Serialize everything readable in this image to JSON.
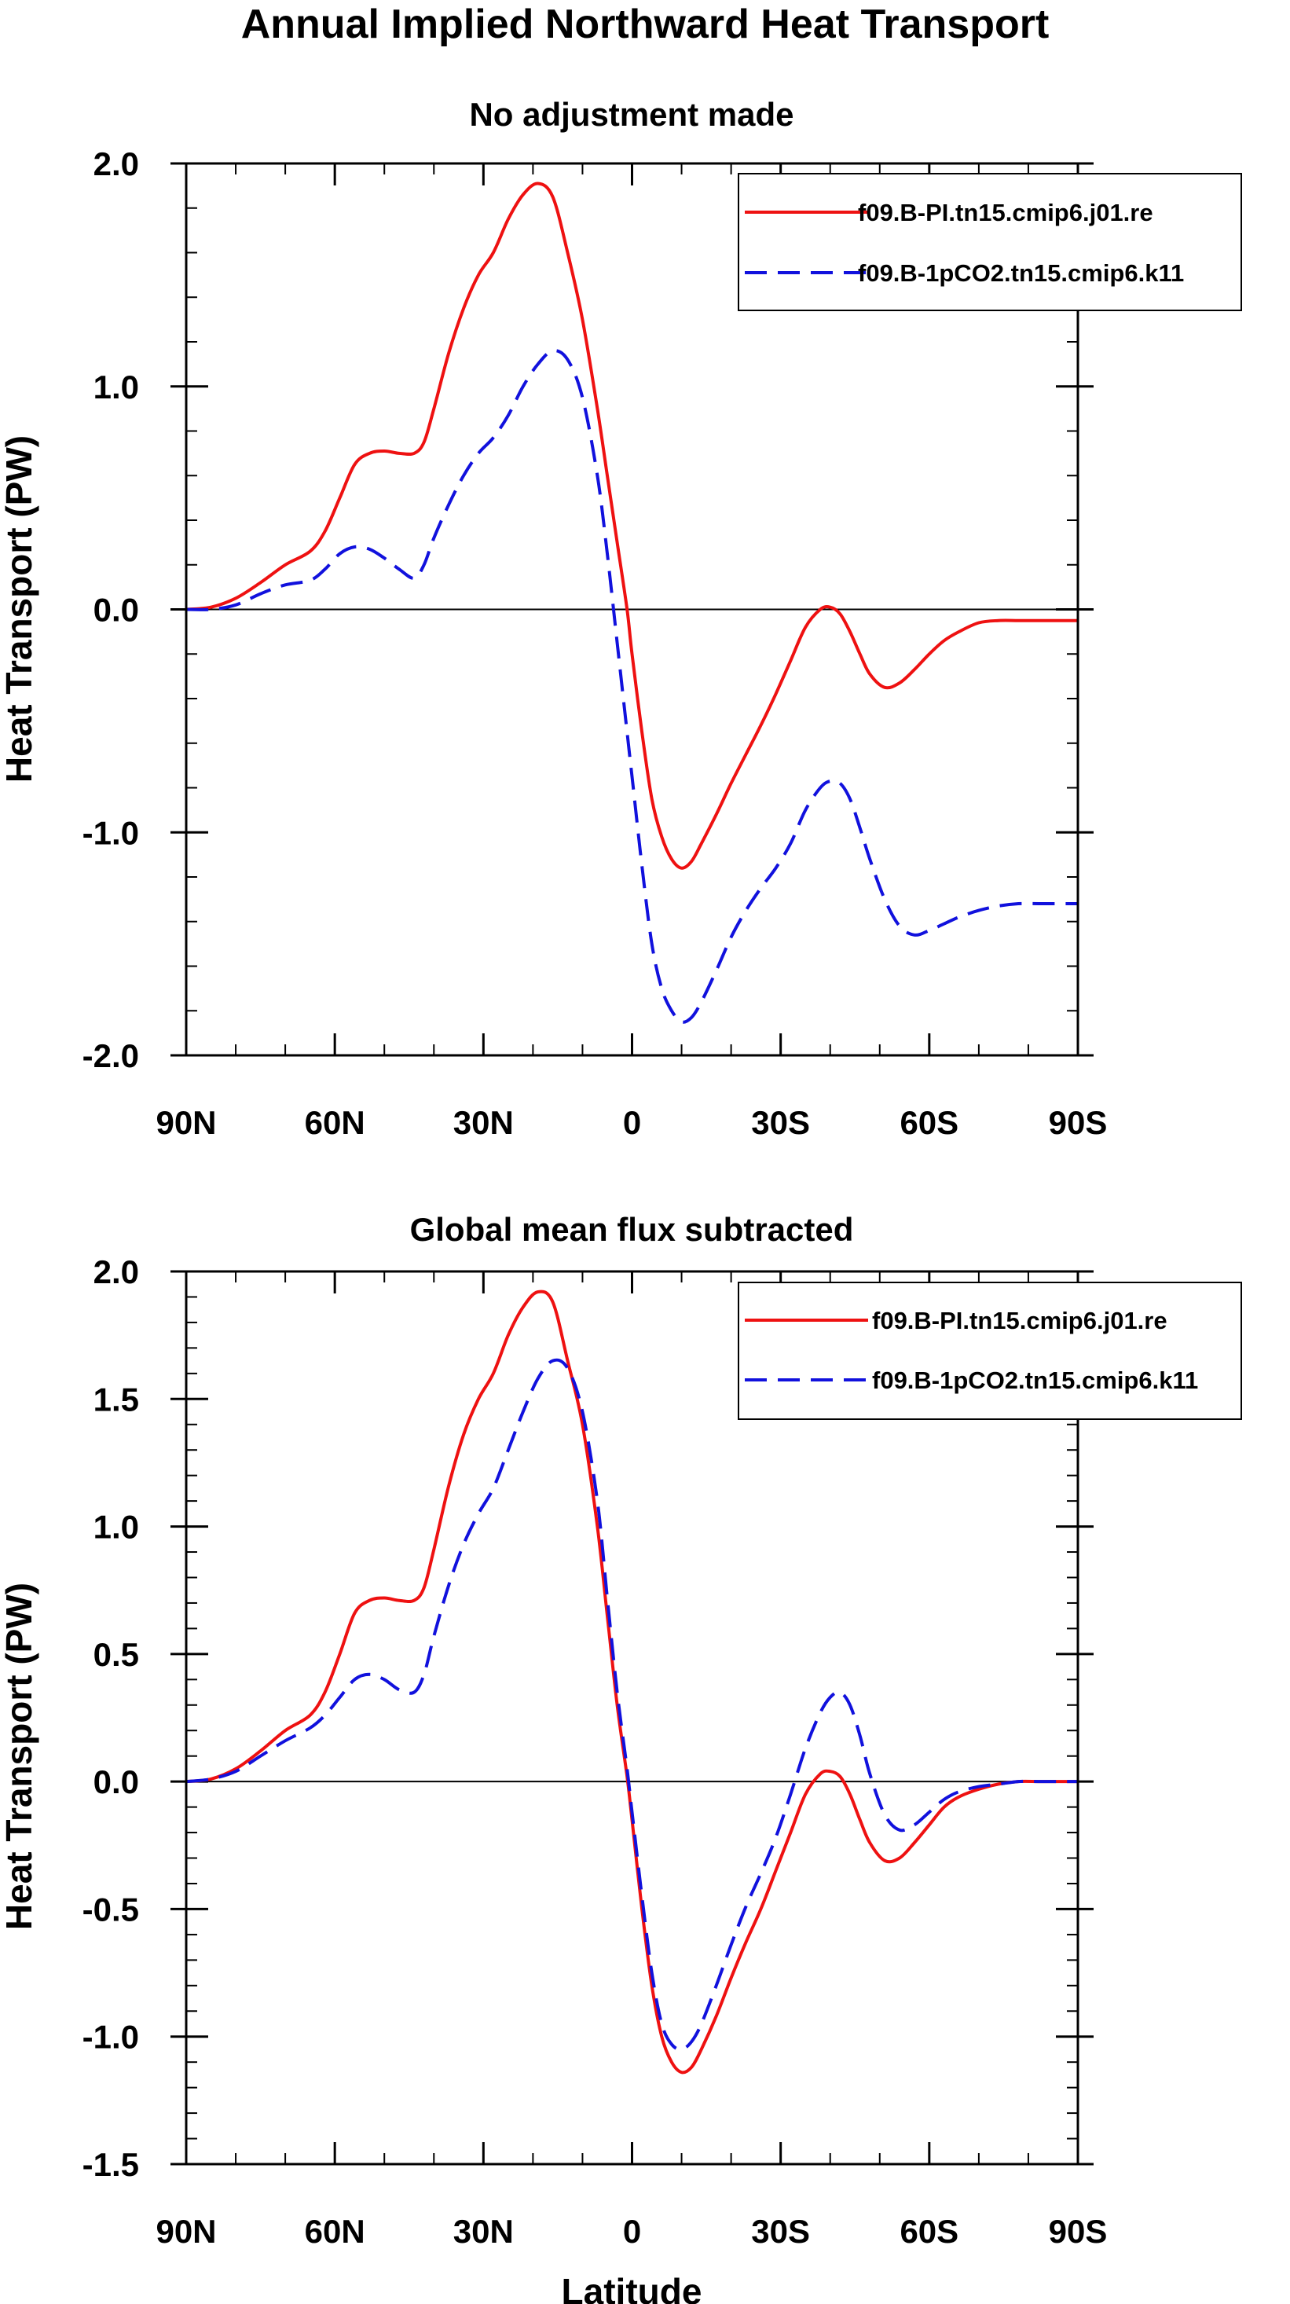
{
  "figure": {
    "title": "Annual Implied Northward Heat Transport",
    "colors": {
      "series1": "#ee1111",
      "series2": "#1111dd",
      "zero_line": "#000000"
    }
  },
  "chart_data": [
    {
      "type": "line",
      "title": "No adjustment made",
      "xlabel": "",
      "ylabel": "Heat Transport (PW)",
      "xlim": [
        90,
        -90
      ],
      "ylim": [
        -2.0,
        2.0
      ],
      "x_ticks": [
        90,
        60,
        30,
        0,
        -30,
        -60,
        -90
      ],
      "x_tick_labels": [
        "90N",
        "60N",
        "30N",
        "0",
        "30S",
        "60S",
        "90S"
      ],
      "y_ticks": [
        -2.0,
        -1.0,
        0.0,
        1.0,
        2.0
      ],
      "y_tick_labels": [
        "-2.0",
        "-1.0",
        "0.0",
        "1.0",
        "2.0"
      ],
      "grid": false,
      "zero_line": true,
      "legend_position": "top-right",
      "series": [
        {
          "name": "f09.B-PI.tn15.cmip6.j01.re",
          "style": "solid",
          "color": "#ee1111",
          "x": [
            90,
            85,
            80,
            75,
            70,
            65,
            62,
            59,
            56,
            53,
            50,
            47,
            44,
            42,
            40,
            37,
            34,
            31,
            28,
            25,
            22,
            19,
            16,
            13,
            10,
            7,
            5,
            3,
            1,
            0,
            -2,
            -4,
            -6,
            -8,
            -10,
            -12,
            -14,
            -17,
            -20,
            -23,
            -26,
            -29,
            -32,
            -35,
            -38,
            -40,
            -42,
            -44,
            -46,
            -48,
            -51,
            -54,
            -57,
            -60,
            -63,
            -66,
            -70,
            -74,
            -78,
            -82,
            -86,
            -90
          ],
          "y": [
            0.0,
            0.01,
            0.05,
            0.12,
            0.2,
            0.26,
            0.35,
            0.5,
            0.65,
            0.7,
            0.71,
            0.7,
            0.7,
            0.75,
            0.9,
            1.15,
            1.35,
            1.5,
            1.6,
            1.75,
            1.86,
            1.91,
            1.85,
            1.6,
            1.3,
            0.9,
            0.6,
            0.3,
            0.0,
            -0.2,
            -0.55,
            -0.85,
            -1.02,
            -1.12,
            -1.16,
            -1.13,
            -1.05,
            -0.92,
            -0.78,
            -0.65,
            -0.52,
            -0.38,
            -0.23,
            -0.08,
            0.0,
            0.01,
            -0.02,
            -0.1,
            -0.2,
            -0.29,
            -0.35,
            -0.33,
            -0.27,
            -0.2,
            -0.14,
            -0.1,
            -0.06,
            -0.05,
            -0.05,
            -0.05,
            -0.05,
            -0.05
          ]
        },
        {
          "name": "f09.B-1pCO2.tn15.cmip6.k11",
          "style": "dashed",
          "color": "#1111dd",
          "x": [
            90,
            85,
            80,
            75,
            70,
            65,
            62,
            59,
            56,
            53,
            50,
            47,
            44,
            42,
            40,
            37,
            34,
            31,
            28,
            25,
            22,
            19,
            16,
            13,
            10,
            7,
            5,
            3,
            1,
            0,
            -2,
            -4,
            -6,
            -8,
            -10,
            -12,
            -14,
            -17,
            -20,
            -23,
            -26,
            -29,
            -32,
            -35,
            -38,
            -40,
            -42,
            -44,
            -46,
            -48,
            -51,
            -54,
            -57,
            -60,
            -63,
            -66,
            -70,
            -74,
            -78,
            -82,
            -86,
            -90
          ],
          "y": [
            0.0,
            0.0,
            0.02,
            0.07,
            0.11,
            0.13,
            0.18,
            0.25,
            0.28,
            0.27,
            0.23,
            0.18,
            0.14,
            0.2,
            0.32,
            0.47,
            0.6,
            0.7,
            0.77,
            0.87,
            1.0,
            1.1,
            1.16,
            1.12,
            0.95,
            0.6,
            0.25,
            -0.15,
            -0.55,
            -0.75,
            -1.15,
            -1.5,
            -1.7,
            -1.8,
            -1.85,
            -1.83,
            -1.76,
            -1.62,
            -1.47,
            -1.35,
            -1.25,
            -1.16,
            -1.05,
            -0.9,
            -0.8,
            -0.77,
            -0.78,
            -0.85,
            -0.98,
            -1.12,
            -1.3,
            -1.42,
            -1.46,
            -1.44,
            -1.41,
            -1.38,
            -1.35,
            -1.33,
            -1.32,
            -1.32,
            -1.32,
            -1.32
          ]
        }
      ]
    },
    {
      "type": "line",
      "title": "Global mean flux subtracted",
      "xlabel": "Latitude",
      "ylabel": "Heat Transport (PW)",
      "xlim": [
        90,
        -90
      ],
      "ylim": [
        -1.5,
        2.0
      ],
      "x_ticks": [
        90,
        60,
        30,
        0,
        -30,
        -60,
        -90
      ],
      "x_tick_labels": [
        "90N",
        "60N",
        "30N",
        "0",
        "30S",
        "60S",
        "90S"
      ],
      "y_ticks": [
        -1.5,
        -1.0,
        -0.5,
        0.0,
        0.5,
        1.0,
        1.5,
        2.0
      ],
      "y_tick_labels": [
        "-1.5",
        "-1.0",
        "-0.5",
        "0.0",
        "0.5",
        "1.0",
        "1.5",
        "2.0"
      ],
      "grid": false,
      "zero_line": true,
      "legend_position": "top-right",
      "series": [
        {
          "name": "f09.B-PI.tn15.cmip6.j01.re",
          "style": "solid",
          "color": "#ee1111",
          "x": [
            90,
            85,
            80,
            75,
            70,
            65,
            62,
            59,
            56,
            53,
            50,
            47,
            44,
            42,
            40,
            37,
            34,
            31,
            28,
            25,
            22,
            19,
            16,
            13,
            10,
            7,
            5,
            3,
            1,
            0,
            -2,
            -4,
            -6,
            -8,
            -10,
            -12,
            -14,
            -17,
            -20,
            -23,
            -26,
            -29,
            -32,
            -35,
            -38,
            -40,
            -42,
            -44,
            -46,
            -48,
            -51,
            -54,
            -57,
            -60,
            -63,
            -66,
            -70,
            -74,
            -78,
            -82,
            -86,
            -90
          ],
          "y": [
            0.0,
            0.01,
            0.05,
            0.12,
            0.2,
            0.26,
            0.35,
            0.5,
            0.66,
            0.71,
            0.72,
            0.71,
            0.71,
            0.76,
            0.91,
            1.16,
            1.36,
            1.5,
            1.6,
            1.75,
            1.86,
            1.92,
            1.88,
            1.65,
            1.4,
            1.0,
            0.65,
            0.3,
            0.02,
            -0.15,
            -0.5,
            -0.8,
            -1.0,
            -1.1,
            -1.14,
            -1.12,
            -1.05,
            -0.92,
            -0.77,
            -0.63,
            -0.5,
            -0.35,
            -0.2,
            -0.05,
            0.03,
            0.04,
            0.02,
            -0.05,
            -0.15,
            -0.24,
            -0.31,
            -0.3,
            -0.24,
            -0.17,
            -0.1,
            -0.06,
            -0.03,
            -0.01,
            0.0,
            0.0,
            0.0,
            0.0
          ]
        },
        {
          "name": "f09.B-1pCO2.tn15.cmip6.k11",
          "style": "dashed",
          "color": "#1111dd",
          "x": [
            90,
            85,
            80,
            75,
            70,
            65,
            62,
            59,
            56,
            53,
            50,
            47,
            44,
            42,
            40,
            37,
            34,
            31,
            28,
            25,
            22,
            19,
            16,
            13,
            10,
            7,
            5,
            3,
            1,
            0,
            -2,
            -4,
            -6,
            -8,
            -10,
            -12,
            -14,
            -17,
            -20,
            -23,
            -26,
            -29,
            -32,
            -35,
            -38,
            -40,
            -42,
            -44,
            -46,
            -48,
            -51,
            -54,
            -57,
            -60,
            -63,
            -66,
            -70,
            -74,
            -78,
            -82,
            -86,
            -90
          ],
          "y": [
            0.0,
            0.01,
            0.04,
            0.1,
            0.16,
            0.21,
            0.26,
            0.33,
            0.4,
            0.42,
            0.4,
            0.36,
            0.35,
            0.42,
            0.57,
            0.77,
            0.93,
            1.05,
            1.15,
            1.3,
            1.45,
            1.58,
            1.65,
            1.62,
            1.45,
            1.1,
            0.72,
            0.35,
            0.05,
            -0.12,
            -0.45,
            -0.75,
            -0.95,
            -1.03,
            -1.05,
            -1.02,
            -0.95,
            -0.8,
            -0.64,
            -0.49,
            -0.36,
            -0.22,
            -0.05,
            0.13,
            0.27,
            0.33,
            0.35,
            0.3,
            0.18,
            0.03,
            -0.13,
            -0.19,
            -0.17,
            -0.12,
            -0.07,
            -0.04,
            -0.02,
            -0.01,
            0.0,
            0.0,
            0.0,
            0.0
          ]
        }
      ]
    }
  ]
}
